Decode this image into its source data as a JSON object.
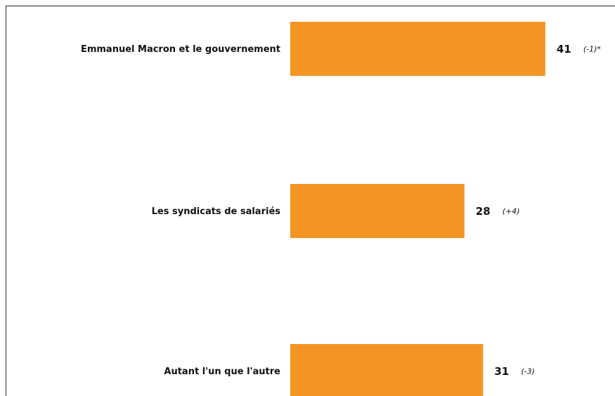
{
  "chart_data": {
    "type": "bar",
    "orientation": "horizontal",
    "categories": [
      "Emmanuel Macron et le gouvernement",
      "Les syndicats de salariés",
      "Autant l'un que l'autre"
    ],
    "values": [
      41,
      28,
      31
    ],
    "changes": [
      "(-1)*",
      "(+4)",
      "(-3)"
    ],
    "color": "#f39423"
  }
}
